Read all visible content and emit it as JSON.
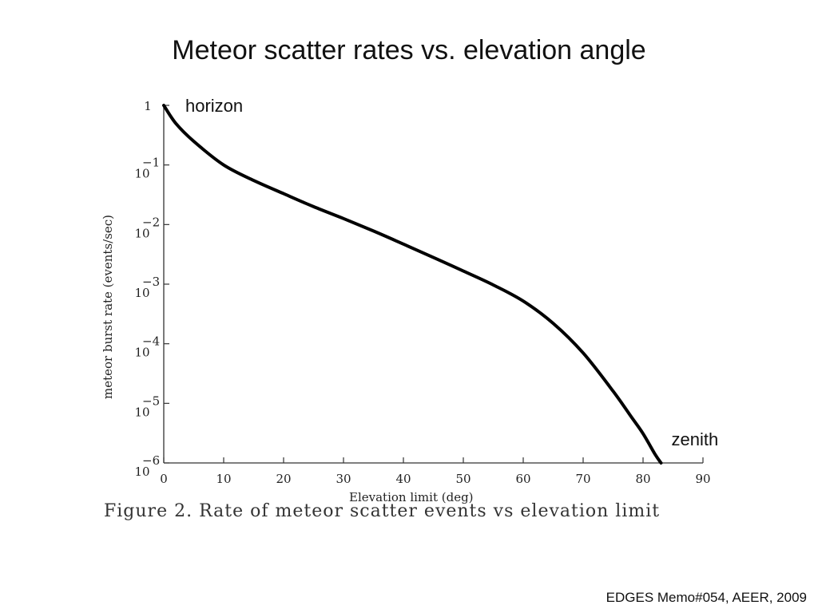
{
  "slide": {
    "title": "Meteor scatter rates vs. elevation angle",
    "caption": "Figure 2.  Rate of meteor scatter events vs elevation limit",
    "credit": "EDGES Memo#054, AEER, 2009"
  },
  "chart_data": {
    "type": "line",
    "title": "",
    "xlabel": "Elevation limit (deg)",
    "ylabel": "meteor burst rate (events/sec)",
    "xlim": [
      0,
      90
    ],
    "ylim_log10": [
      -6,
      0
    ],
    "yscale": "log",
    "xticks": [
      "0",
      "10",
      "20",
      "30",
      "40",
      "50",
      "60",
      "70",
      "80",
      "90"
    ],
    "yticks": [
      {
        "base": "1",
        "exp": "",
        "log10": 0
      },
      {
        "base": "10",
        "exp": "−1",
        "log10": -1
      },
      {
        "base": "10",
        "exp": "−2",
        "log10": -2
      },
      {
        "base": "10",
        "exp": "−3",
        "log10": -3
      },
      {
        "base": "10",
        "exp": "−4",
        "log10": -4
      },
      {
        "base": "10",
        "exp": "−5",
        "log10": -5
      },
      {
        "base": "10",
        "exp": "−6",
        "log10": -6
      }
    ],
    "annotations": [
      {
        "text": "horizon",
        "x": 0,
        "y": 1
      },
      {
        "text": "zenith",
        "x": 83,
        "y": 1e-06
      }
    ],
    "series": [
      {
        "x": [
          0,
          2,
          5,
          10,
          15,
          20,
          25,
          30,
          35,
          40,
          45,
          50,
          55,
          60,
          65,
          70,
          75,
          78,
          80,
          82,
          83
        ],
        "y": [
          1,
          0.5,
          0.25,
          0.1,
          0.055,
          0.033,
          0.02,
          0.0126,
          0.0078,
          0.0047,
          0.0028,
          0.00166,
          0.00097,
          0.00052,
          0.00022,
          7e-05,
          1.6e-05,
          6e-06,
          3.1e-06,
          1.4e-06,
          1e-06
        ]
      }
    ],
    "grid": false,
    "legend": "none"
  }
}
